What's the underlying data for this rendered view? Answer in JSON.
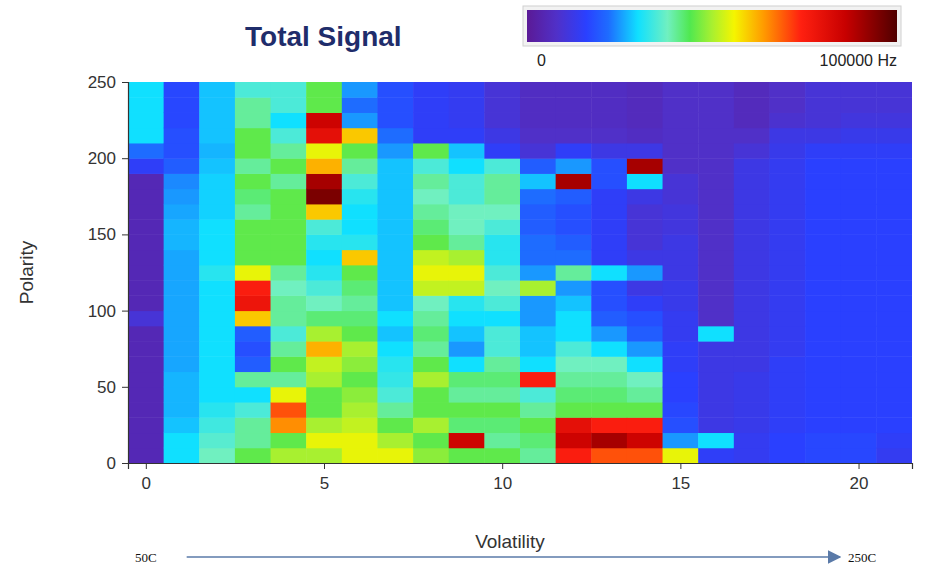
{
  "chart_data": {
    "type": "heatmap",
    "title": "Total Signal",
    "x_label": "Volatility",
    "y_label": "Polarity",
    "x_bins": [
      -0.5,
      0.5,
      1.5,
      2.5,
      3.5,
      4.5,
      5.5,
      6.5,
      7.5,
      8.5,
      9.5,
      10.5,
      11.5,
      12.5,
      13.5,
      14.5,
      15.5,
      16.5,
      17.5,
      18.5,
      19.5,
      20.5,
      21.5
    ],
    "y_bins": [
      0,
      10,
      20,
      30,
      40,
      50,
      60,
      70,
      80,
      90,
      100,
      110,
      120,
      130,
      140,
      150,
      160,
      170,
      180,
      190,
      200,
      210,
      220,
      230,
      240,
      250
    ],
    "values": [
      [
        5000,
        5000,
        5000,
        5000,
        5000,
        5000,
        5000,
        5000,
        5000,
        10000,
        5000,
        5000,
        5000,
        5000,
        5000,
        5000,
        5000,
        5000,
        5000,
        15000,
        22000,
        30000,
        30000,
        30000,
        30000
      ],
      [
        30000,
        30000,
        28000,
        27000,
        27000,
        27000,
        26000,
        26000,
        26000,
        26000,
        26000,
        26000,
        26000,
        26000,
        27000,
        27000,
        26000,
        25000,
        24000,
        20000,
        18000,
        18000,
        17000,
        17000,
        17000
      ],
      [
        38000,
        36000,
        34000,
        32000,
        30000,
        30000,
        30000,
        30000,
        30000,
        30000,
        30000,
        30000,
        32000,
        30000,
        30000,
        30000,
        29000,
        29000,
        29000,
        28000,
        27000,
        28000,
        28000,
        28000,
        28000
      ],
      [
        45000,
        40000,
        40000,
        35000,
        30000,
        40000,
        20000,
        18000,
        20000,
        60000,
        78000,
        75000,
        55000,
        45000,
        45000,
        45000,
        40000,
        42000,
        45000,
        40000,
        45000,
        45000,
        40000,
        40000,
        35000
      ],
      [
        50000,
        45000,
        65000,
        70000,
        55000,
        40000,
        45000,
        40000,
        35000,
        40000,
        40000,
        38000,
        40000,
        45000,
        45000,
        45000,
        45000,
        45000,
        40000,
        45000,
        40000,
        35000,
        30000,
        35000,
        35000
      ],
      [
        50000,
        55000,
        50000,
        45000,
        45000,
        50000,
        52000,
        62000,
        50000,
        42000,
        38000,
        35000,
        32000,
        30000,
        32000,
        35000,
        60000,
        95000,
        90000,
        62000,
        55000,
        80000,
        85000,
        45000,
        45000
      ],
      [
        55000,
        55000,
        52000,
        50000,
        48000,
        45000,
        48000,
        50000,
        45000,
        42000,
        40000,
        42000,
        45000,
        60000,
        32000,
        30000,
        30000,
        32000,
        35000,
        40000,
        45000,
        60000,
        25000,
        22000,
        25000
      ],
      [
        55000,
        50000,
        45000,
        40000,
        35000,
        33000,
        32000,
        30000,
        28000,
        30000,
        28000,
        28000,
        28000,
        28000,
        28000,
        28000,
        28000,
        28000,
        28000,
        28000,
        25000,
        22000,
        18000,
        18000,
        18000
      ],
      [
        48000,
        45000,
        50000,
        45000,
        45000,
        50000,
        45000,
        40000,
        42000,
        40000,
        38000,
        52000,
        55000,
        52000,
        45000,
        42000,
        40000,
        38000,
        40000,
        35000,
        45000,
        15000,
        15000,
        15000,
        15000
      ],
      [
        45000,
        85000,
        42000,
        45000,
        40000,
        42000,
        30000,
        25000,
        28000,
        30000,
        32000,
        52000,
        55000,
        50000,
        40000,
        38000,
        38000,
        35000,
        35000,
        30000,
        28000,
        15000,
        14000,
        14000,
        14000
      ],
      [
        45000,
        40000,
        42000,
        45000,
        40000,
        42000,
        40000,
        35000,
        35000,
        30000,
        35000,
        38000,
        35000,
        32000,
        32000,
        35000,
        38000,
        40000,
        40000,
        35000,
        15000,
        12000,
        10000,
        10000,
        10000
      ],
      [
        40000,
        42000,
        45000,
        40000,
        35000,
        75000,
        30000,
        28000,
        28000,
        25000,
        25000,
        50000,
        25000,
        22000,
        22000,
        20000,
        20000,
        22000,
        28000,
        20000,
        10000,
        8000,
        7000,
        7000,
        7000
      ],
      [
        75000,
        85000,
        80000,
        45000,
        42000,
        40000,
        38000,
        35000,
        30000,
        30000,
        28000,
        25000,
        40000,
        22000,
        20000,
        18000,
        18000,
        20000,
        90000,
        25000,
        15000,
        8000,
        7000,
        7000,
        7000
      ],
      [
        70000,
        90000,
        75000,
        45000,
        42000,
        40000,
        38000,
        30000,
        25000,
        20000,
        18000,
        18000,
        30000,
        15000,
        15000,
        15000,
        15000,
        15000,
        18000,
        18000,
        12000,
        8000,
        7000,
        7000,
        7000
      ],
      [
        70000,
        85000,
        75000,
        45000,
        40000,
        38000,
        30000,
        25000,
        20000,
        18000,
        15000,
        12000,
        25000,
        12000,
        10000,
        10000,
        10000,
        12000,
        30000,
        90000,
        12000,
        7000,
        6000,
        6000,
        6000
      ],
      [
        55000,
        25000,
        18000,
        17000,
        16000,
        16000,
        15000,
        15000,
        14000,
        14000,
        13000,
        13000,
        12000,
        12000,
        12000,
        11000,
        11000,
        10000,
        10000,
        8000,
        8000,
        8000,
        8000,
        8000,
        8000
      ],
      [
        15000,
        30000,
        12000,
        12000,
        12000,
        12000,
        12000,
        12000,
        30000,
        8000,
        8000,
        8000,
        8000,
        8000,
        8000,
        8000,
        8000,
        8000,
        8000,
        8000,
        8000,
        8000,
        8000,
        8000,
        8000
      ],
      [
        14000,
        14000,
        13000,
        13000,
        13000,
        13000,
        12000,
        12000,
        12000,
        12000,
        12000,
        12000,
        12000,
        12000,
        12000,
        12000,
        12000,
        12000,
        12000,
        12000,
        10000,
        8000,
        6000,
        6000,
        6000
      ],
      [
        16000,
        16000,
        15000,
        15000,
        15000,
        15000,
        15000,
        14000,
        14000,
        14000,
        14000,
        14000,
        14000,
        14000,
        14000,
        14000,
        14000,
        14000,
        14000,
        14000,
        13000,
        12000,
        9000,
        8000,
        8000
      ],
      [
        17000,
        17000,
        16000,
        16000,
        16000,
        16000,
        16000,
        16000,
        16000,
        16000,
        16000,
        16000,
        16000,
        16000,
        16000,
        16000,
        16000,
        16000,
        16000,
        16000,
        15000,
        12000,
        10000,
        10000,
        10000
      ],
      [
        17000,
        17000,
        16000,
        16000,
        16000,
        16000,
        16000,
        16000,
        16000,
        16000,
        16000,
        16000,
        16000,
        16000,
        16000,
        16000,
        16000,
        16000,
        16000,
        16000,
        15000,
        13000,
        11000,
        10000,
        10000
      ],
      [
        14000,
        15000,
        16000,
        16000,
        16000,
        16000,
        16000,
        16000,
        16000,
        16000,
        16000,
        16000,
        16000,
        16000,
        16000,
        16000,
        16000,
        16000,
        16000,
        16000,
        15000,
        13000,
        11000,
        10000,
        10000
      ]
    ],
    "xlim": [
      -0.5,
      21.5
    ],
    "ylim": [
      0,
      250
    ],
    "xticks": [
      0,
      5,
      10,
      15,
      20
    ],
    "yticks": [
      0,
      50,
      100,
      150,
      200,
      250
    ],
    "colorbar": {
      "range": [
        0,
        100000
      ],
      "ticks": [
        0,
        {
          "value": 100000,
          "label": "100000 Hz"
        }
      ]
    },
    "annotations": [
      "50C",
      "250C"
    ]
  }
}
